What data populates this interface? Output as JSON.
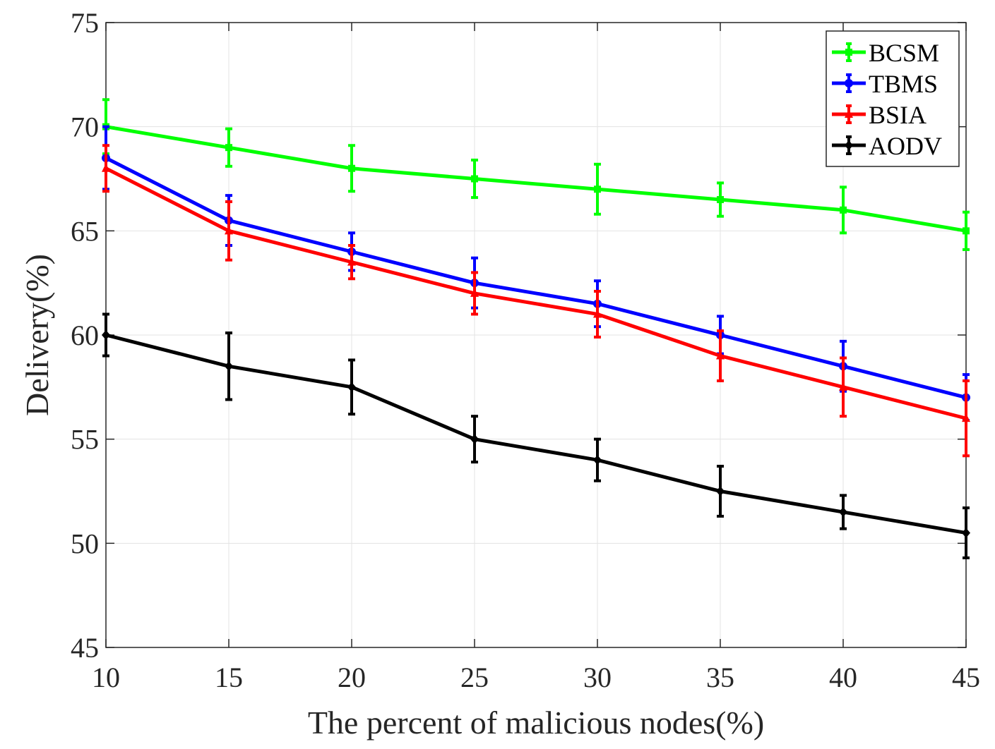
{
  "chart_data": {
    "type": "line",
    "xlabel": "The percent of malicious nodes(%)",
    "ylabel": "Delivery(%)",
    "x": [
      10,
      15,
      20,
      25,
      30,
      35,
      40,
      45
    ],
    "xticks": [
      "10",
      "15",
      "20",
      "25",
      "30",
      "35",
      "40",
      "45"
    ],
    "yticks": [
      "45",
      "50",
      "55",
      "60",
      "65",
      "70",
      "75"
    ],
    "xlim": [
      10,
      45
    ],
    "ylim": [
      45,
      75
    ],
    "grid": true,
    "legend_position": "top-right",
    "series": [
      {
        "name": "BCSM",
        "color": "#00ff00",
        "marker": "square",
        "values": [
          70,
          69,
          68,
          67.5,
          67,
          66.5,
          66,
          65
        ],
        "errors": [
          1.3,
          0.9,
          1.1,
          0.9,
          1.2,
          0.8,
          1.1,
          0.9
        ]
      },
      {
        "name": "TBMS",
        "color": "#0000ff",
        "marker": "circle",
        "values": [
          68.5,
          65.5,
          64,
          62.5,
          61.5,
          60,
          58.5,
          57
        ],
        "errors": [
          1.5,
          1.2,
          0.9,
          1.2,
          1.1,
          0.9,
          1.2,
          1.1
        ]
      },
      {
        "name": "BSIA",
        "color": "#ff0000",
        "marker": "triangle",
        "values": [
          68,
          65,
          63.5,
          62,
          61,
          59,
          57.5,
          56
        ],
        "errors": [
          1.1,
          1.4,
          0.8,
          1.0,
          1.1,
          1.2,
          1.4,
          1.8
        ]
      },
      {
        "name": "AODV",
        "color": "#000000",
        "marker": "diamond",
        "values": [
          60,
          58.5,
          57.5,
          55,
          54,
          52.5,
          51.5,
          50.5
        ],
        "errors": [
          1.0,
          1.6,
          1.3,
          1.1,
          1.0,
          1.2,
          0.8,
          1.2
        ]
      }
    ]
  }
}
